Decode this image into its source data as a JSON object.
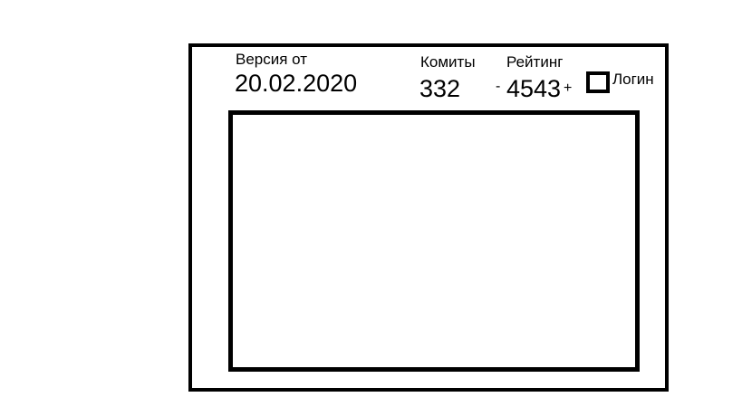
{
  "version": {
    "label": "Версия от",
    "date": "20.02.2020"
  },
  "commits": {
    "label": "Комиты",
    "count": "332"
  },
  "rating": {
    "label": "Рейтинг",
    "decrement": "-",
    "value": "4543",
    "increment": "+"
  },
  "login": {
    "label": "Логин",
    "checked": false
  }
}
